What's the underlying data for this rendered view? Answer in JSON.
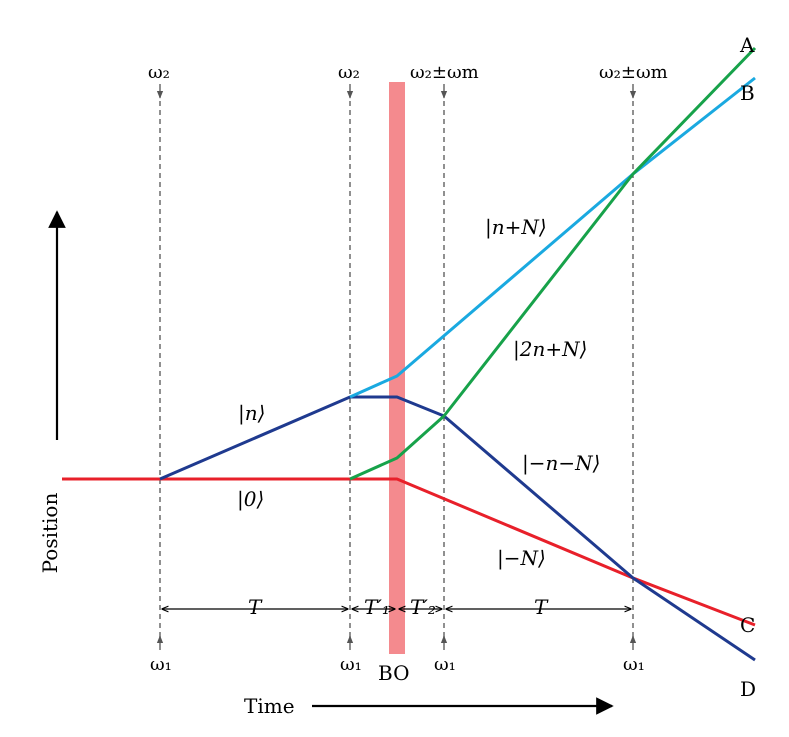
{
  "axes": {
    "y_label": "Position",
    "x_label": "Time"
  },
  "top_pulses": [
    "ω₂",
    "ω₂",
    "ω₂±ωm",
    "ω₂±ωm"
  ],
  "bottom_pulses": [
    "ω₁",
    "ω₁",
    "ω₁",
    "ω₁"
  ],
  "bo_label": "BO",
  "intervals": [
    "T",
    "T′₁",
    "T′₂",
    "T"
  ],
  "state_labels": {
    "n": "|n⟩",
    "zero": "|0⟩",
    "n_plus_N": "|n+N⟩",
    "two_n_plus_N": "|2n+N⟩",
    "minus_n_minus_N": "|−n−N⟩",
    "minus_N": "|−N⟩"
  },
  "end_labels": [
    "A",
    "B",
    "C",
    "D"
  ],
  "colors": {
    "red": "#e8202a",
    "dark_blue": "#1f3a8f",
    "light_blue": "#1aa9e0",
    "green": "#17a24a",
    "bo_band": "#f48a8e",
    "dashed": "#555555"
  }
}
